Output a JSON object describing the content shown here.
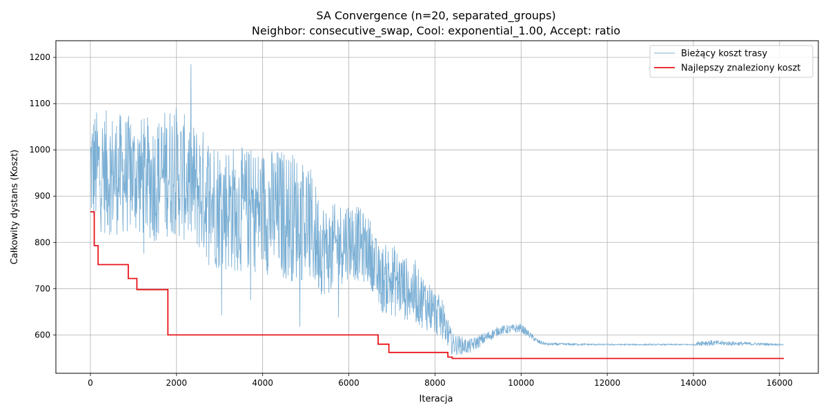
{
  "chart_data": {
    "type": "line",
    "title_line1": "SA Convergence (n=20, separated_groups)",
    "title_line2": "Neighbor: consecutive_swap, Cool: exponential_1.00, Accept: ratio",
    "xlabel": "Iteracja",
    "ylabel": "Całkowity dystans (Koszt)",
    "xlim": [
      -800,
      16900
    ],
    "ylim": [
      517,
      1236
    ],
    "xticks": [
      0,
      2000,
      4000,
      6000,
      8000,
      10000,
      12000,
      14000,
      16000
    ],
    "yticks": [
      600,
      700,
      800,
      900,
      1000,
      1100,
      1200
    ],
    "grid": true,
    "legend_position": "top-right",
    "colors": {
      "current": "#7bafd4",
      "best": "#e8141b",
      "grid": "#b0b0b0"
    },
    "series": [
      {
        "name": "Bieżący koszt trasy",
        "style": "noisy-thin",
        "envelope": {
          "x": [
            0,
            400,
            1000,
            1500,
            1900,
            2300,
            3000,
            3500,
            4000,
            4500,
            5000,
            5300,
            5500,
            6000,
            6500,
            6700,
            7000,
            7500,
            7900,
            8200,
            8400,
            8800,
            9100,
            9500,
            10000,
            10400,
            10600,
            12000,
            14000,
            14200,
            16100
          ],
          "center": [
            960,
            950,
            945,
            935,
            960,
            930,
            880,
            870,
            870,
            860,
            850,
            800,
            780,
            810,
            780,
            720,
            720,
            690,
            660,
            630,
            580,
            575,
            590,
            610,
            615,
            585,
            580,
            579,
            579,
            583,
            579
          ],
          "amp": [
            80,
            85,
            80,
            85,
            90,
            85,
            90,
            85,
            85,
            90,
            85,
            70,
            60,
            55,
            45,
            45,
            50,
            40,
            35,
            25,
            15,
            10,
            8,
            6,
            6,
            3,
            2,
            1,
            1,
            4,
            1
          ]
        }
      },
      {
        "name": "Najlepszy znaleziony koszt",
        "style": "step",
        "x": [
          0,
          90,
          180,
          880,
          1080,
          1800,
          6680,
          6930,
          8300,
          8400,
          16100
        ],
        "y": [
          866,
          793,
          752,
          722,
          698,
          600,
          580,
          562,
          552,
          549,
          549
        ]
      }
    ]
  }
}
